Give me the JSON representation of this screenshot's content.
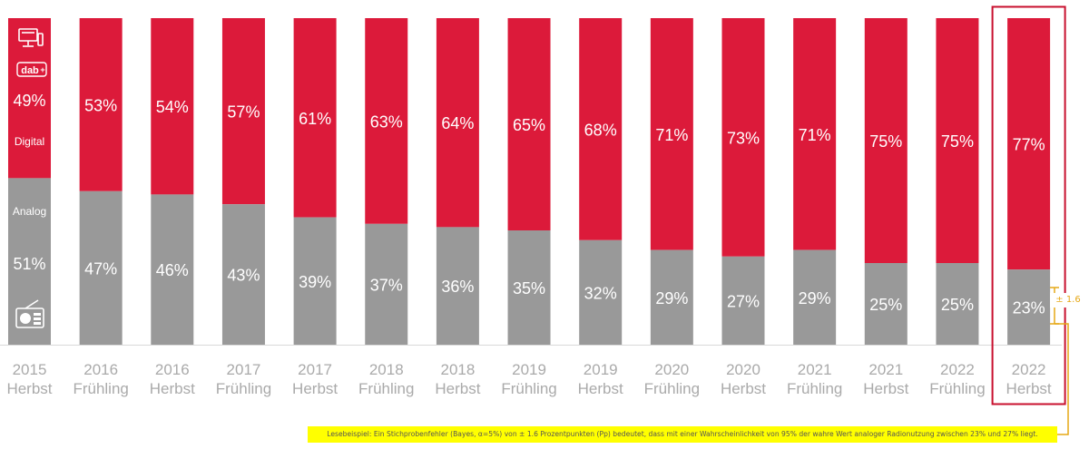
{
  "chart_data": {
    "type": "bar",
    "stacked": true,
    "categories": [
      [
        "2015",
        "Herbst"
      ],
      [
        "2016",
        "Frühling"
      ],
      [
        "2016",
        "Herbst"
      ],
      [
        "2017",
        "Frühling"
      ],
      [
        "2017",
        "Herbst"
      ],
      [
        "2018",
        "Frühling"
      ],
      [
        "2018",
        "Herbst"
      ],
      [
        "2019",
        "Frühling"
      ],
      [
        "2019",
        "Herbst"
      ],
      [
        "2020",
        "Frühling"
      ],
      [
        "2020",
        "Herbst"
      ],
      [
        "2021",
        "Frühling"
      ],
      [
        "2021",
        "Herbst"
      ],
      [
        "2022",
        "Frühling"
      ],
      [
        "2022",
        "Herbst"
      ]
    ],
    "series": [
      {
        "name": "Analog",
        "color": "#999999",
        "values": [
          51,
          47,
          46,
          43,
          39,
          37,
          36,
          35,
          32,
          29,
          27,
          29,
          25,
          25,
          23
        ]
      },
      {
        "name": "Digital",
        "color": "#dc1a3a",
        "values": [
          49,
          53,
          54,
          57,
          61,
          63,
          64,
          65,
          68,
          71,
          73,
          71,
          75,
          75,
          77
        ]
      }
    ],
    "value_suffix": "%",
    "ylim": [
      0,
      100
    ],
    "grid": false,
    "legend": "embedded in first bar",
    "highlight_index": 14,
    "highlight_color": "#c8102e",
    "error_margin_label": "± 1.6",
    "icons": [
      "computer-icon",
      "dab-plus-icon",
      "radio-icon"
    ]
  },
  "footnote": "Lesebeispiel: Ein Stichprobenfehler (Bayes, α=5%) von ± 1.6 Prozentpunkten (Pp) bedeutet, dass mit einer Wahrscheinlichkeit von 95% der wahre Wert analoger Radionutzung zwischen 23% und 27% liegt.",
  "colors": {
    "annotation": "#ffff00",
    "annotation_line": "#e6a817",
    "label_text": "#ffffff",
    "axis_text": "#aaaaaa"
  }
}
